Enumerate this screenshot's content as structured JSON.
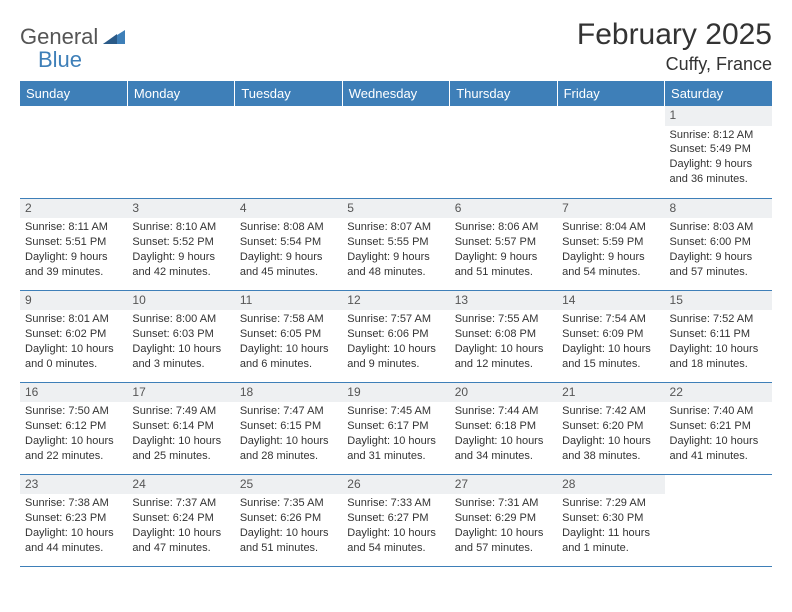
{
  "brand": {
    "word1": "General",
    "word2": "Blue",
    "logo_color": "#3e7fb8",
    "text_color": "#555555"
  },
  "header": {
    "month_title": "February 2025",
    "location": "Cuffy, France"
  },
  "colors": {
    "header_bg": "#3e7fb8",
    "header_text": "#ffffff",
    "daynum_bg": "#eef0f2",
    "row_border": "#3e7fb8",
    "body_text": "#333333"
  },
  "weekdays": [
    "Sunday",
    "Monday",
    "Tuesday",
    "Wednesday",
    "Thursday",
    "Friday",
    "Saturday"
  ],
  "weeks": [
    [
      null,
      null,
      null,
      null,
      null,
      null,
      {
        "n": "1",
        "sr": "8:12 AM",
        "ss": "5:49 PM",
        "dl": "9 hours and 36 minutes."
      }
    ],
    [
      {
        "n": "2",
        "sr": "8:11 AM",
        "ss": "5:51 PM",
        "dl": "9 hours and 39 minutes."
      },
      {
        "n": "3",
        "sr": "8:10 AM",
        "ss": "5:52 PM",
        "dl": "9 hours and 42 minutes."
      },
      {
        "n": "4",
        "sr": "8:08 AM",
        "ss": "5:54 PM",
        "dl": "9 hours and 45 minutes."
      },
      {
        "n": "5",
        "sr": "8:07 AM",
        "ss": "5:55 PM",
        "dl": "9 hours and 48 minutes."
      },
      {
        "n": "6",
        "sr": "8:06 AM",
        "ss": "5:57 PM",
        "dl": "9 hours and 51 minutes."
      },
      {
        "n": "7",
        "sr": "8:04 AM",
        "ss": "5:59 PM",
        "dl": "9 hours and 54 minutes."
      },
      {
        "n": "8",
        "sr": "8:03 AM",
        "ss": "6:00 PM",
        "dl": "9 hours and 57 minutes."
      }
    ],
    [
      {
        "n": "9",
        "sr": "8:01 AM",
        "ss": "6:02 PM",
        "dl": "10 hours and 0 minutes."
      },
      {
        "n": "10",
        "sr": "8:00 AM",
        "ss": "6:03 PM",
        "dl": "10 hours and 3 minutes."
      },
      {
        "n": "11",
        "sr": "7:58 AM",
        "ss": "6:05 PM",
        "dl": "10 hours and 6 minutes."
      },
      {
        "n": "12",
        "sr": "7:57 AM",
        "ss": "6:06 PM",
        "dl": "10 hours and 9 minutes."
      },
      {
        "n": "13",
        "sr": "7:55 AM",
        "ss": "6:08 PM",
        "dl": "10 hours and 12 minutes."
      },
      {
        "n": "14",
        "sr": "7:54 AM",
        "ss": "6:09 PM",
        "dl": "10 hours and 15 minutes."
      },
      {
        "n": "15",
        "sr": "7:52 AM",
        "ss": "6:11 PM",
        "dl": "10 hours and 18 minutes."
      }
    ],
    [
      {
        "n": "16",
        "sr": "7:50 AM",
        "ss": "6:12 PM",
        "dl": "10 hours and 22 minutes."
      },
      {
        "n": "17",
        "sr": "7:49 AM",
        "ss": "6:14 PM",
        "dl": "10 hours and 25 minutes."
      },
      {
        "n": "18",
        "sr": "7:47 AM",
        "ss": "6:15 PM",
        "dl": "10 hours and 28 minutes."
      },
      {
        "n": "19",
        "sr": "7:45 AM",
        "ss": "6:17 PM",
        "dl": "10 hours and 31 minutes."
      },
      {
        "n": "20",
        "sr": "7:44 AM",
        "ss": "6:18 PM",
        "dl": "10 hours and 34 minutes."
      },
      {
        "n": "21",
        "sr": "7:42 AM",
        "ss": "6:20 PM",
        "dl": "10 hours and 38 minutes."
      },
      {
        "n": "22",
        "sr": "7:40 AM",
        "ss": "6:21 PM",
        "dl": "10 hours and 41 minutes."
      }
    ],
    [
      {
        "n": "23",
        "sr": "7:38 AM",
        "ss": "6:23 PM",
        "dl": "10 hours and 44 minutes."
      },
      {
        "n": "24",
        "sr": "7:37 AM",
        "ss": "6:24 PM",
        "dl": "10 hours and 47 minutes."
      },
      {
        "n": "25",
        "sr": "7:35 AM",
        "ss": "6:26 PM",
        "dl": "10 hours and 51 minutes."
      },
      {
        "n": "26",
        "sr": "7:33 AM",
        "ss": "6:27 PM",
        "dl": "10 hours and 54 minutes."
      },
      {
        "n": "27",
        "sr": "7:31 AM",
        "ss": "6:29 PM",
        "dl": "10 hours and 57 minutes."
      },
      {
        "n": "28",
        "sr": "7:29 AM",
        "ss": "6:30 PM",
        "dl": "11 hours and 1 minute."
      },
      null
    ]
  ],
  "labels": {
    "sunrise": "Sunrise:",
    "sunset": "Sunset:",
    "daylight": "Daylight:"
  }
}
